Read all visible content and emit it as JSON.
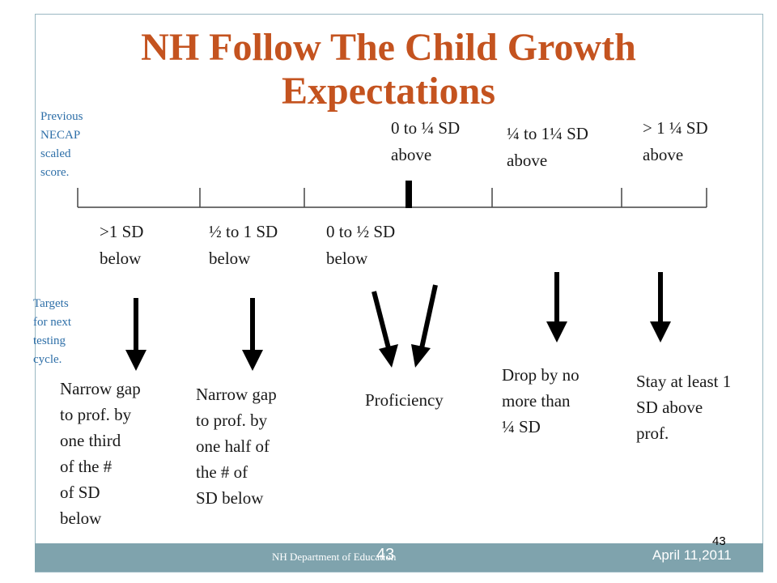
{
  "slide": {
    "title": "NH Follow The Child Growth Expectations",
    "previous_label": [
      "Previous",
      "NECAP",
      "scaled",
      "score."
    ],
    "targets_label": [
      "Targets",
      "for next",
      "testing",
      "cycle."
    ],
    "above_labels": [
      [
        "0 to ¼ SD",
        "above"
      ],
      [
        "¼ to 1¼  SD",
        "above"
      ],
      [
        "> 1 ¼ SD",
        "above"
      ]
    ],
    "below_labels": [
      [
        ">1 SD",
        "below"
      ],
      [
        "½ to 1 SD",
        "below"
      ],
      [
        "0 to ½ SD",
        "below"
      ]
    ],
    "targets": [
      [
        "Narrow gap",
        "to prof. by",
        "one third",
        "of the  #",
        "of SD",
        "below"
      ],
      [
        "Narrow gap",
        "to prof. by",
        "one half of",
        "the  # of",
        "SD below"
      ],
      [
        "Proficiency"
      ],
      [
        "Drop by no",
        "more than",
        "¼ SD"
      ],
      [
        "Stay at least 1",
        "SD above",
        "prof."
      ]
    ]
  },
  "footer": {
    "department": "NH Department of Education",
    "page_number": "43",
    "date": "April 11,2011",
    "corner_number": "43"
  },
  "colors": {
    "title": "#c4531f",
    "side_labels": "#2e6fa8",
    "footer_bar": "#7fa3ad"
  }
}
